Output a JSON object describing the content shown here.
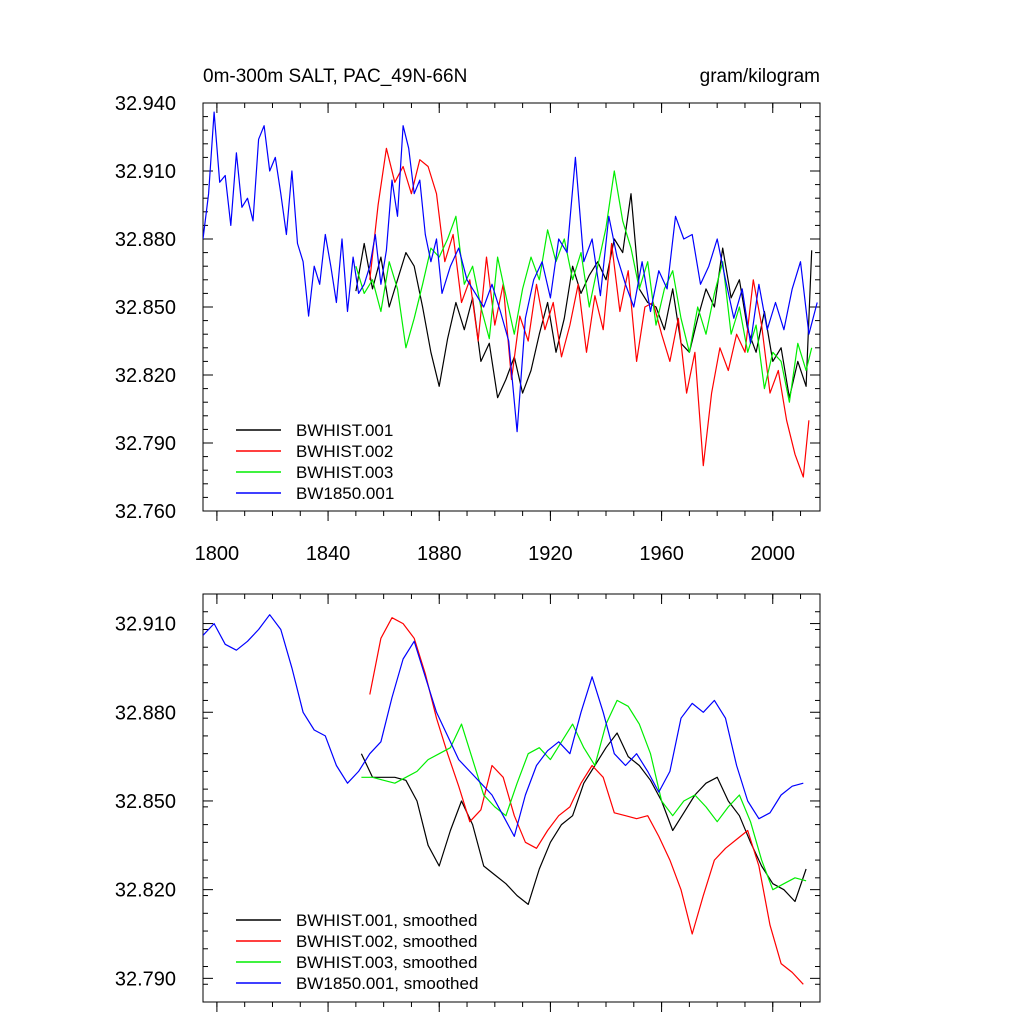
{
  "chart_data": [
    {
      "type": "line",
      "title": "0m-300m SALT, PAC_49N-66N",
      "units": "gram/kilogram",
      "xlim": [
        1795,
        2017
      ],
      "ylim": [
        32.76,
        32.94
      ],
      "xticks": [
        1800,
        1840,
        1880,
        1920,
        1960,
        2000
      ],
      "xtick_labels": [
        "1800",
        "1840",
        "1880",
        "1920",
        "1960",
        "2000"
      ],
      "yticks": [
        32.76,
        32.79,
        32.82,
        32.85,
        32.88,
        32.91,
        32.94
      ],
      "ytick_labels": [
        "32.760",
        "32.790",
        "32.820",
        "32.850",
        "32.880",
        "32.910",
        "32.940"
      ],
      "legend_position": "bottom-left",
      "series": [
        {
          "name": "BWHIST.001",
          "color": "#000000",
          "x": [
            1850,
            1853,
            1856,
            1859,
            1862,
            1865,
            1868,
            1871,
            1874,
            1877,
            1880,
            1883,
            1886,
            1889,
            1892,
            1895,
            1898,
            1901,
            1904,
            1907,
            1910,
            1913,
            1916,
            1919,
            1922,
            1925,
            1928,
            1931,
            1934,
            1937,
            1940,
            1943,
            1946,
            1949,
            1952,
            1955,
            1958,
            1961,
            1964,
            1967,
            1970,
            1973,
            1976,
            1979,
            1982,
            1985,
            1988,
            1991,
            1994,
            1997,
            2000,
            2003,
            2006,
            2009,
            2012,
            2014
          ],
          "y": [
            32.857,
            32.878,
            32.858,
            32.872,
            32.85,
            32.862,
            32.874,
            32.868,
            32.85,
            32.83,
            32.815,
            32.836,
            32.852,
            32.84,
            32.854,
            32.826,
            32.834,
            32.81,
            32.818,
            32.828,
            32.812,
            32.822,
            32.838,
            32.852,
            32.83,
            32.845,
            32.868,
            32.856,
            32.864,
            32.87,
            32.862,
            32.88,
            32.874,
            32.9,
            32.858,
            32.852,
            32.85,
            32.84,
            32.858,
            32.834,
            32.83,
            32.845,
            32.858,
            32.85,
            32.876,
            32.854,
            32.862,
            32.84,
            32.83,
            32.848,
            32.826,
            32.832,
            32.81,
            32.826,
            32.815,
            32.875
          ]
        },
        {
          "name": "BWHIST.002",
          "color": "#ff0000",
          "x": [
            1855,
            1858,
            1861,
            1864,
            1867,
            1870,
            1873,
            1876,
            1879,
            1882,
            1885,
            1888,
            1891,
            1894,
            1897,
            1900,
            1903,
            1906,
            1909,
            1912,
            1915,
            1918,
            1921,
            1924,
            1927,
            1930,
            1933,
            1936,
            1939,
            1942,
            1945,
            1948,
            1951,
            1954,
            1957,
            1960,
            1963,
            1966,
            1969,
            1972,
            1975,
            1978,
            1981,
            1984,
            1987,
            1990,
            1993,
            1996,
            1999,
            2002,
            2005,
            2008,
            2011,
            2013
          ],
          "y": [
            32.862,
            32.895,
            32.92,
            32.905,
            32.912,
            32.9,
            32.915,
            32.912,
            32.9,
            32.87,
            32.882,
            32.852,
            32.862,
            32.835,
            32.872,
            32.842,
            32.86,
            32.818,
            32.846,
            32.835,
            32.86,
            32.84,
            32.852,
            32.828,
            32.842,
            32.86,
            32.83,
            32.855,
            32.84,
            32.878,
            32.848,
            32.866,
            32.826,
            32.85,
            32.852,
            32.838,
            32.826,
            32.845,
            32.812,
            32.83,
            32.78,
            32.812,
            32.832,
            32.822,
            32.838,
            32.83,
            32.862,
            32.842,
            32.812,
            32.822,
            32.8,
            32.785,
            32.775,
            32.8
          ]
        },
        {
          "name": "BWHIST.003",
          "color": "#00ee00",
          "x": [
            1850,
            1853,
            1856,
            1859,
            1862,
            1865,
            1868,
            1871,
            1874,
            1877,
            1880,
            1883,
            1886,
            1889,
            1892,
            1895,
            1898,
            1901,
            1904,
            1907,
            1910,
            1913,
            1916,
            1919,
            1922,
            1925,
            1928,
            1931,
            1934,
            1937,
            1940,
            1943,
            1946,
            1949,
            1952,
            1955,
            1958,
            1961,
            1964,
            1967,
            1970,
            1973,
            1976,
            1979,
            1982,
            1985,
            1988,
            1991,
            1994,
            1997,
            2000,
            2003,
            2006,
            2009,
            2012,
            2014
          ],
          "y": [
            32.868,
            32.856,
            32.862,
            32.848,
            32.87,
            32.858,
            32.832,
            32.845,
            32.86,
            32.876,
            32.872,
            32.88,
            32.89,
            32.86,
            32.868,
            32.85,
            32.836,
            32.872,
            32.855,
            32.838,
            32.858,
            32.872,
            32.862,
            32.884,
            32.87,
            32.88,
            32.862,
            32.874,
            32.85,
            32.868,
            32.885,
            32.91,
            32.888,
            32.876,
            32.858,
            32.87,
            32.842,
            32.858,
            32.866,
            32.845,
            32.83,
            32.85,
            32.838,
            32.856,
            32.87,
            32.838,
            32.85,
            32.83,
            32.842,
            32.814,
            32.83,
            32.826,
            32.808,
            32.834,
            32.822,
            32.832
          ]
        },
        {
          "name": "BW1850.001",
          "color": "#0000ff",
          "x": [
            1795,
            1797,
            1799,
            1801,
            1803,
            1805,
            1807,
            1809,
            1811,
            1813,
            1815,
            1817,
            1819,
            1821,
            1823,
            1825,
            1827,
            1829,
            1831,
            1833,
            1835,
            1837,
            1839,
            1841,
            1843,
            1845,
            1847,
            1849,
            1851,
            1853,
            1855,
            1857,
            1859,
            1861,
            1863,
            1865,
            1867,
            1869,
            1871,
            1873,
            1875,
            1877,
            1879,
            1881,
            1884,
            1887,
            1890,
            1893,
            1896,
            1899,
            1902,
            1905,
            1908,
            1911,
            1914,
            1917,
            1920,
            1923,
            1926,
            1929,
            1932,
            1935,
            1938,
            1941,
            1944,
            1947,
            1950,
            1953,
            1956,
            1959,
            1962,
            1965,
            1968,
            1971,
            1974,
            1977,
            1980,
            1983,
            1986,
            1989,
            1992,
            1995,
            1998,
            2001,
            2004,
            2007,
            2010,
            2013,
            2016
          ],
          "y": [
            32.88,
            32.9,
            32.936,
            32.905,
            32.908,
            32.886,
            32.918,
            32.894,
            32.898,
            32.888,
            32.924,
            32.93,
            32.91,
            32.916,
            32.9,
            32.882,
            32.91,
            32.878,
            32.87,
            32.846,
            32.868,
            32.86,
            32.882,
            32.868,
            32.852,
            32.88,
            32.848,
            32.872,
            32.856,
            32.86,
            32.868,
            32.882,
            32.86,
            32.875,
            32.906,
            32.89,
            32.93,
            32.92,
            32.9,
            32.906,
            32.882,
            32.87,
            32.88,
            32.856,
            32.868,
            32.876,
            32.862,
            32.856,
            32.85,
            32.86,
            32.848,
            32.835,
            32.795,
            32.845,
            32.862,
            32.87,
            32.854,
            32.88,
            32.874,
            32.916,
            32.87,
            32.88,
            32.855,
            32.89,
            32.872,
            32.86,
            32.85,
            32.87,
            32.848,
            32.866,
            32.858,
            32.89,
            32.88,
            32.882,
            32.86,
            32.868,
            32.88,
            32.862,
            32.845,
            32.858,
            32.834,
            32.86,
            32.84,
            32.852,
            32.84,
            32.858,
            32.87,
            32.838,
            32.852
          ]
        }
      ]
    },
    {
      "type": "line",
      "title": "",
      "xlim": [
        1795,
        2017
      ],
      "ylim": [
        32.782,
        32.92
      ],
      "xticks": [
        1800,
        1840,
        1880,
        1920,
        1960,
        2000
      ],
      "yticks": [
        32.79,
        32.82,
        32.85,
        32.88,
        32.91
      ],
      "ytick_labels": [
        "32.790",
        "32.820",
        "32.850",
        "32.880",
        "32.910"
      ],
      "legend_position": "bottom-left",
      "series": [
        {
          "name": "BWHIST.001, smoothed",
          "color": "#000000",
          "x": [
            1852,
            1856,
            1860,
            1864,
            1868,
            1872,
            1876,
            1880,
            1884,
            1888,
            1892,
            1896,
            1900,
            1904,
            1908,
            1912,
            1916,
            1920,
            1924,
            1928,
            1932,
            1936,
            1940,
            1944,
            1948,
            1952,
            1956,
            1960,
            1964,
            1968,
            1972,
            1976,
            1980,
            1984,
            1988,
            1992,
            1996,
            2000,
            2004,
            2008,
            2012
          ],
          "y": [
            32.866,
            32.858,
            32.858,
            32.858,
            32.857,
            32.85,
            32.835,
            32.828,
            32.84,
            32.85,
            32.842,
            32.828,
            32.825,
            32.822,
            32.818,
            32.815,
            32.827,
            32.836,
            32.842,
            32.845,
            32.856,
            32.862,
            32.868,
            32.873,
            32.865,
            32.862,
            32.857,
            32.85,
            32.84,
            32.846,
            32.852,
            32.856,
            32.858,
            32.85,
            32.845,
            32.836,
            32.828,
            32.822,
            32.82,
            32.816,
            32.827
          ]
        },
        {
          "name": "BWHIST.002, smoothed",
          "color": "#ff0000",
          "x": [
            1855,
            1859,
            1863,
            1867,
            1871,
            1875,
            1879,
            1883,
            1887,
            1891,
            1895,
            1899,
            1903,
            1907,
            1911,
            1915,
            1919,
            1923,
            1927,
            1931,
            1935,
            1939,
            1943,
            1947,
            1951,
            1955,
            1959,
            1963,
            1967,
            1971,
            1975,
            1979,
            1983,
            1987,
            1991,
            1995,
            1999,
            2003,
            2007,
            2011
          ],
          "y": [
            32.886,
            32.905,
            32.912,
            32.91,
            32.905,
            32.893,
            32.878,
            32.866,
            32.855,
            32.843,
            32.847,
            32.862,
            32.858,
            32.845,
            32.836,
            32.834,
            32.84,
            32.845,
            32.848,
            32.856,
            32.862,
            32.858,
            32.846,
            32.845,
            32.844,
            32.845,
            32.838,
            32.83,
            32.82,
            32.805,
            32.818,
            32.83,
            32.834,
            32.837,
            32.84,
            32.828,
            32.808,
            32.795,
            32.792,
            32.788
          ]
        },
        {
          "name": "BWHIST.003, smoothed",
          "color": "#00ee00",
          "x": [
            1852,
            1856,
            1860,
            1864,
            1868,
            1872,
            1876,
            1880,
            1884,
            1888,
            1892,
            1896,
            1900,
            1904,
            1908,
            1912,
            1916,
            1920,
            1924,
            1928,
            1932,
            1936,
            1940,
            1944,
            1948,
            1952,
            1956,
            1960,
            1964,
            1968,
            1972,
            1976,
            1980,
            1984,
            1988,
            1992,
            1996,
            2000,
            2004,
            2008,
            2012
          ],
          "y": [
            32.858,
            32.858,
            32.857,
            32.856,
            32.858,
            32.86,
            32.864,
            32.866,
            32.868,
            32.876,
            32.864,
            32.852,
            32.848,
            32.845,
            32.856,
            32.866,
            32.868,
            32.864,
            32.87,
            32.876,
            32.868,
            32.862,
            32.876,
            32.884,
            32.882,
            32.876,
            32.866,
            32.85,
            32.845,
            32.85,
            32.852,
            32.848,
            32.843,
            32.848,
            32.852,
            32.843,
            32.83,
            32.82,
            32.822,
            32.824,
            32.823
          ]
        },
        {
          "name": "BW1850.001, smoothed",
          "color": "#0000ff",
          "x": [
            1795,
            1799,
            1803,
            1807,
            1811,
            1815,
            1819,
            1823,
            1827,
            1831,
            1835,
            1839,
            1843,
            1847,
            1851,
            1855,
            1859,
            1863,
            1867,
            1871,
            1875,
            1879,
            1883,
            1887,
            1891,
            1895,
            1899,
            1903,
            1907,
            1911,
            1915,
            1919,
            1923,
            1927,
            1931,
            1935,
            1939,
            1943,
            1947,
            1951,
            1955,
            1959,
            1963,
            1967,
            1971,
            1975,
            1979,
            1983,
            1987,
            1991,
            1995,
            1999,
            2003,
            2007,
            2011
          ],
          "y": [
            32.906,
            32.91,
            32.903,
            32.901,
            32.904,
            32.908,
            32.913,
            32.908,
            32.895,
            32.88,
            32.874,
            32.872,
            32.862,
            32.856,
            32.86,
            32.866,
            32.87,
            32.885,
            32.898,
            32.904,
            32.892,
            32.88,
            32.872,
            32.864,
            32.86,
            32.856,
            32.852,
            32.845,
            32.838,
            32.852,
            32.862,
            32.867,
            32.87,
            32.866,
            32.88,
            32.892,
            32.88,
            32.866,
            32.862,
            32.866,
            32.86,
            32.853,
            32.86,
            32.878,
            32.883,
            32.88,
            32.884,
            32.878,
            32.862,
            32.85,
            32.844,
            32.846,
            32.852,
            32.855,
            32.856
          ]
        }
      ]
    }
  ]
}
